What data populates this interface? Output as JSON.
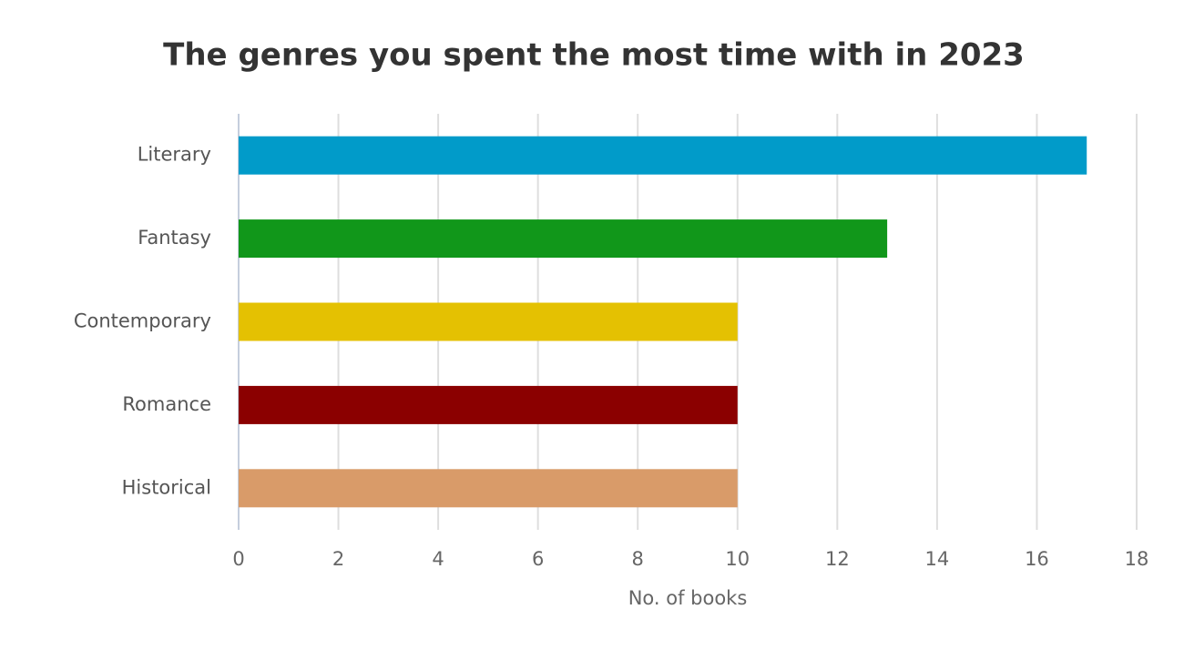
{
  "chart_data": {
    "type": "bar",
    "orientation": "horizontal",
    "title": "The genres you spent the most time with in 2023",
    "categories": [
      "Literary",
      "Fantasy",
      "Contemporary",
      "Romance",
      "Historical"
    ],
    "values": [
      17,
      13,
      10,
      10,
      10
    ],
    "colors": [
      "#019bc9",
      "#11971a",
      "#e4c102",
      "#8b0000",
      "#d99b69"
    ],
    "x_label": "No. of books",
    "xlim": [
      0,
      18
    ],
    "xticks": [
      0,
      2,
      4,
      6,
      8,
      10,
      12,
      14,
      16,
      18
    ],
    "grid": true
  }
}
